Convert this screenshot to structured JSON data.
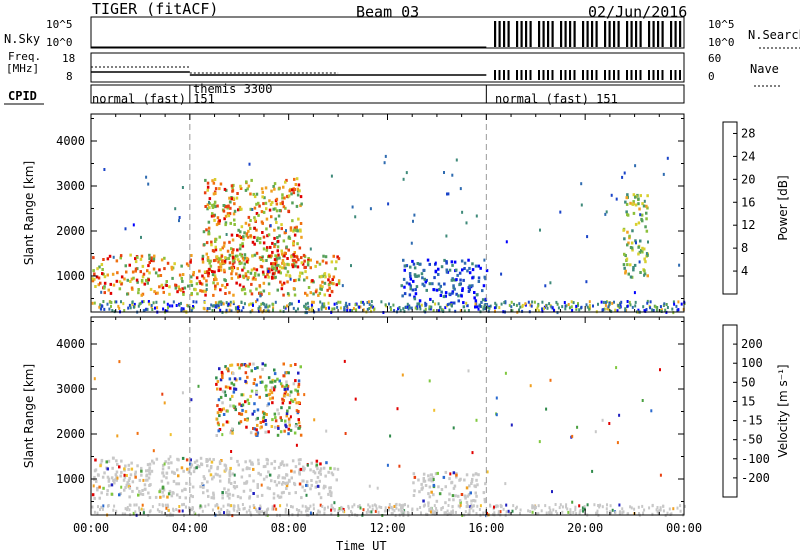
{
  "header": {
    "radar": "TIGER (fitACF)",
    "beam": "Beam 03",
    "date": "02/Jun/2016"
  },
  "top_panel": {
    "nsky_label": "N.Sky",
    "nsky_ticks": [
      "10^5",
      "10^0"
    ],
    "nsearch_label": "N.Search",
    "freq_label_1": "Freq.",
    "freq_label_2": "[MHz]",
    "freq_ticks": [
      "18",
      "8"
    ],
    "nave_label": "Nave",
    "nave_ticks": [
      "60",
      "0"
    ],
    "cpid_label": "CPID",
    "cpid_segments": [
      "normal (fast) 151",
      "themis 3300",
      "normal (fast) 151"
    ]
  },
  "chart_data": [
    {
      "type": "heatmap",
      "title": "",
      "xlabel": "",
      "ylabel": "Slant Range [km]",
      "x_tick_labels": [
        "00:00",
        "04:00",
        "08:00",
        "12:00",
        "16:00",
        "20:00",
        "00:00"
      ],
      "xlim_hours": [
        0,
        24
      ],
      "y_tick_labels": [
        "1000",
        "2000",
        "3000",
        "4000"
      ],
      "ylim": [
        200,
        4600
      ],
      "colorbar": {
        "label": "Power [dB]",
        "ticks": [
          "4",
          "8",
          "12",
          "16",
          "20",
          "24",
          "28"
        ],
        "range": [
          0,
          30
        ],
        "colors": [
          "#0000ff",
          "#1a44c8",
          "#2f6bb0",
          "#3f8a7a",
          "#55a05a",
          "#8cc03a",
          "#d8d030",
          "#f0a020",
          "#f07010",
          "#e84010",
          "#e00000"
        ]
      },
      "features": [
        {
          "x_range": [
            0,
            10
          ],
          "y_range": [
            600,
            1500
          ],
          "level": "high"
        },
        {
          "x_range": [
            4.5,
            8.5
          ],
          "y_range": [
            1000,
            3200
          ],
          "level": "high"
        },
        {
          "x_range": [
            12.5,
            16
          ],
          "y_range": [
            300,
            1400
          ],
          "level": "low"
        },
        {
          "x_range": [
            21.5,
            22.5
          ],
          "y_range": [
            1000,
            2900
          ],
          "level": "medium"
        }
      ]
    },
    {
      "type": "heatmap",
      "title": "",
      "xlabel": "Time UT",
      "ylabel": "Slant Range [km]",
      "x_tick_labels": [
        "00:00",
        "04:00",
        "08:00",
        "12:00",
        "16:00",
        "20:00",
        "00:00"
      ],
      "xlim_hours": [
        0,
        24
      ],
      "y_tick_labels": [
        "1000",
        "2000",
        "3000",
        "4000"
      ],
      "ylim": [
        200,
        4600
      ],
      "colorbar": {
        "label": "Velocity [m s⁻¹]",
        "ticks": [
          "200",
          "100",
          "50",
          "15",
          "-15",
          "-50",
          "-100",
          "-200"
        ],
        "colors": [
          "#2020c0",
          "#2a6ad0",
          "#2f8a4a",
          "#4aa040",
          "#80c840",
          "#c8c8c8",
          "#f0c030",
          "#f0a020",
          "#f07010",
          "#e84010",
          "#e00000"
        ]
      },
      "features": [
        {
          "x_range": [
            0,
            10
          ],
          "y_range": [
            600,
            1500
          ],
          "level": "near-zero"
        },
        {
          "x_range": [
            5,
            8.5
          ],
          "y_range": [
            2000,
            3600
          ],
          "level": "mixed"
        },
        {
          "x_range": [
            13,
            16
          ],
          "y_range": [
            500,
            1200
          ],
          "level": "near-zero"
        }
      ]
    }
  ]
}
